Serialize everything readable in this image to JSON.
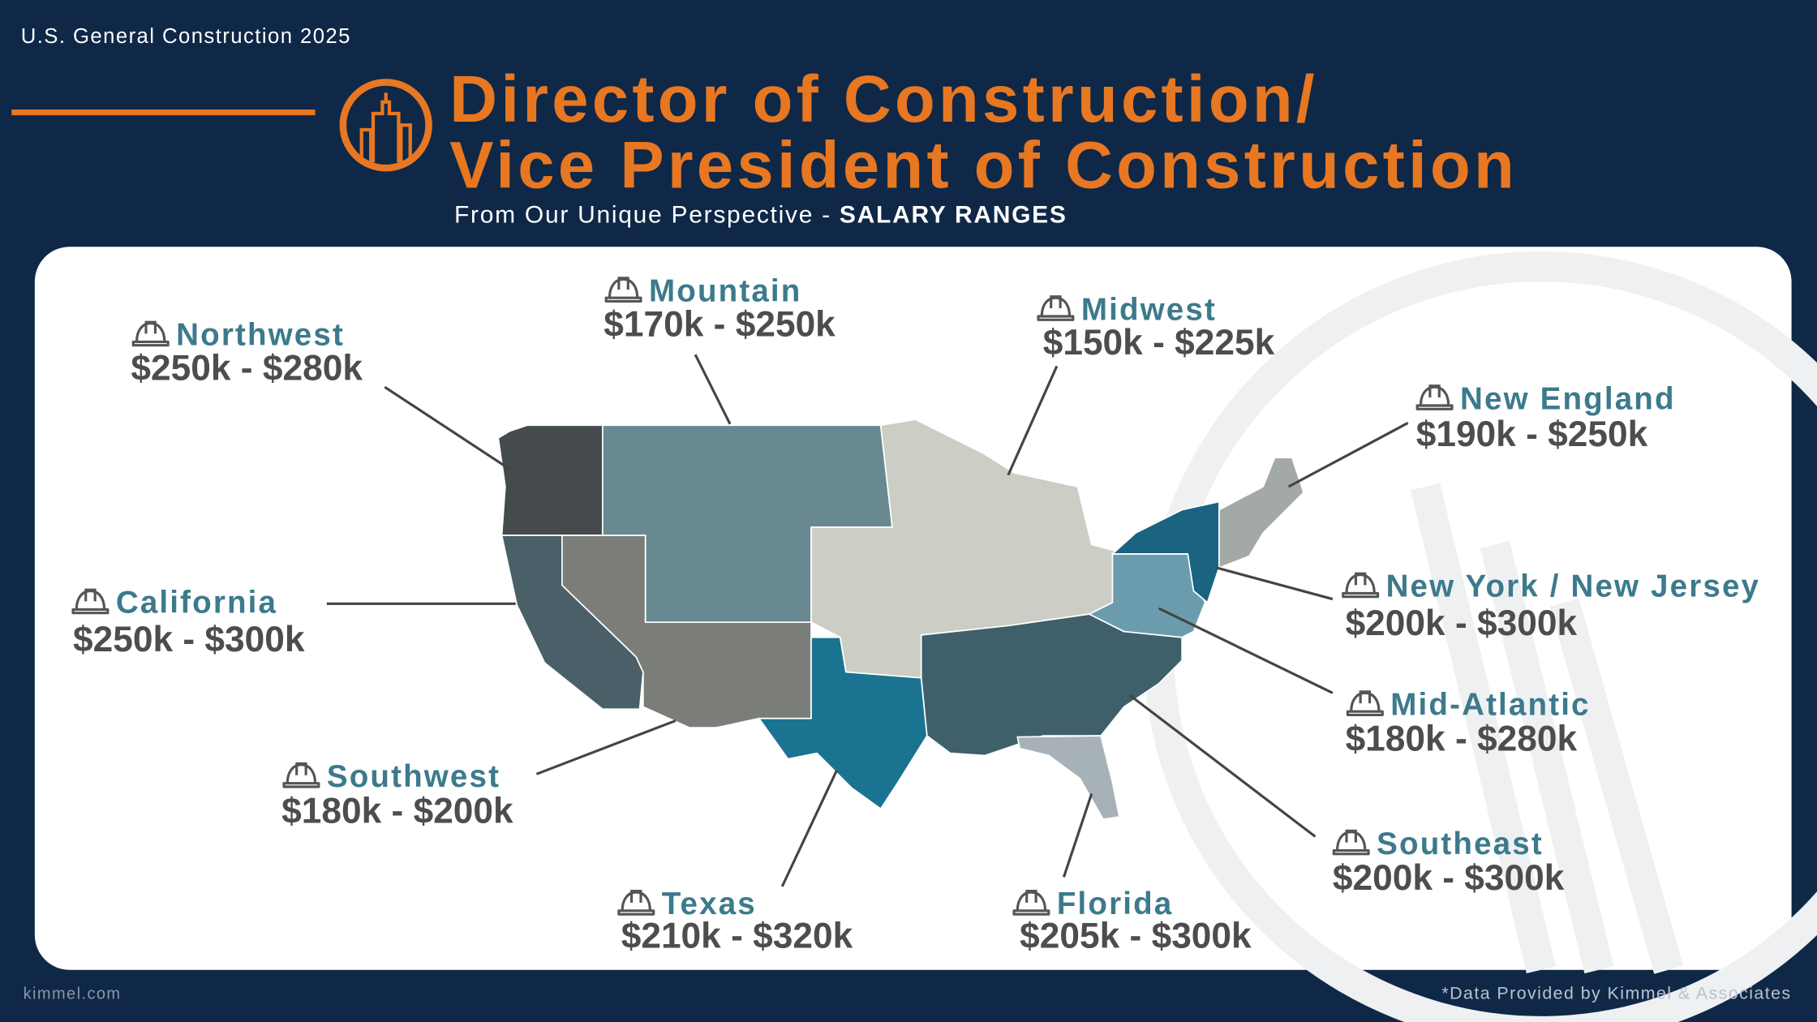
{
  "header": {
    "tag": "U.S. General Construction 2025"
  },
  "title": {
    "lines": [
      "Director of Construction/",
      "Vice President of Construction"
    ]
  },
  "subtitle": {
    "lead": "From Our Unique Perspective -",
    "emphasis": "SALARY RANGES"
  },
  "regions": [
    {
      "name": "Northwest",
      "range": "$250k - $280k"
    },
    {
      "name": "Mountain",
      "range": "$170k - $250k"
    },
    {
      "name": "Midwest",
      "range": "$150k - $225k"
    },
    {
      "name": "New England",
      "range": "$190k - $250k"
    },
    {
      "name": "New York / New Jersey",
      "range": "$200k - $300k"
    },
    {
      "name": "Mid-Atlantic",
      "range": "$180k - $280k"
    },
    {
      "name": "Southeast",
      "range": "$200k - $300k"
    },
    {
      "name": "Florida",
      "range": "$205k - $300k"
    },
    {
      "name": "Texas",
      "range": "$210k - $320k"
    },
    {
      "name": "Southwest",
      "range": "$180k - $200k"
    },
    {
      "name": "California",
      "range": "$250k - $300k"
    }
  ],
  "footer": {
    "left": "kimmel.com",
    "right": "*Data Provided by Kimmel & Associates"
  }
}
